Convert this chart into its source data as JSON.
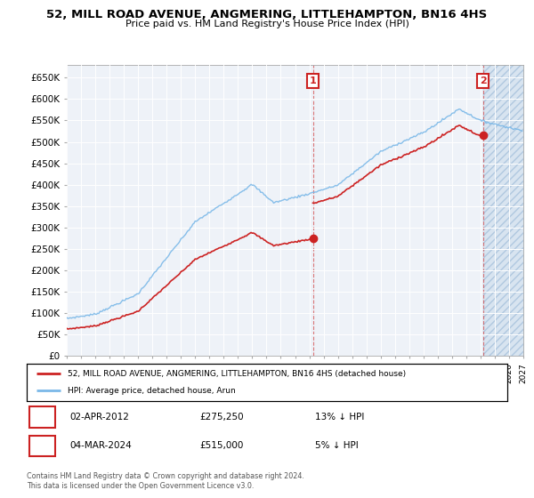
{
  "title": "52, MILL ROAD AVENUE, ANGMERING, LITTLEHAMPTON, BN16 4HS",
  "subtitle": "Price paid vs. HM Land Registry's House Price Index (HPI)",
  "ylabel_ticks": [
    "£0",
    "£50K",
    "£100K",
    "£150K",
    "£200K",
    "£250K",
    "£300K",
    "£350K",
    "£400K",
    "£450K",
    "£500K",
    "£550K",
    "£600K",
    "£650K"
  ],
  "ylim": [
    0,
    680000
  ],
  "ytick_vals": [
    0,
    50000,
    100000,
    150000,
    200000,
    250000,
    300000,
    350000,
    400000,
    450000,
    500000,
    550000,
    600000,
    650000
  ],
  "x_start_year": 1995,
  "x_end_year": 2027,
  "hpi_color": "#7ab8e8",
  "price_color": "#cc2222",
  "background_color": "#eef2f8",
  "hatch_color": "#d8e4f0",
  "sale1_year": 2012.25,
  "sale1_price": 275250,
  "sale2_year": 2024.17,
  "sale2_price": 515000,
  "legend_label1": "52, MILL ROAD AVENUE, ANGMERING, LITTLEHAMPTON, BN16 4HS (detached house)",
  "legend_label2": "HPI: Average price, detached house, Arun",
  "sale1_date": "02-APR-2012",
  "sale1_pct": "13% ↓ HPI",
  "sale2_date": "04-MAR-2024",
  "sale2_pct": "5% ↓ HPI",
  "sale1_price_str": "£275,250",
  "sale2_price_str": "£515,000",
  "footer1": "Contains HM Land Registry data © Crown copyright and database right 2024.",
  "footer2": "This data is licensed under the Open Government Licence v3.0."
}
